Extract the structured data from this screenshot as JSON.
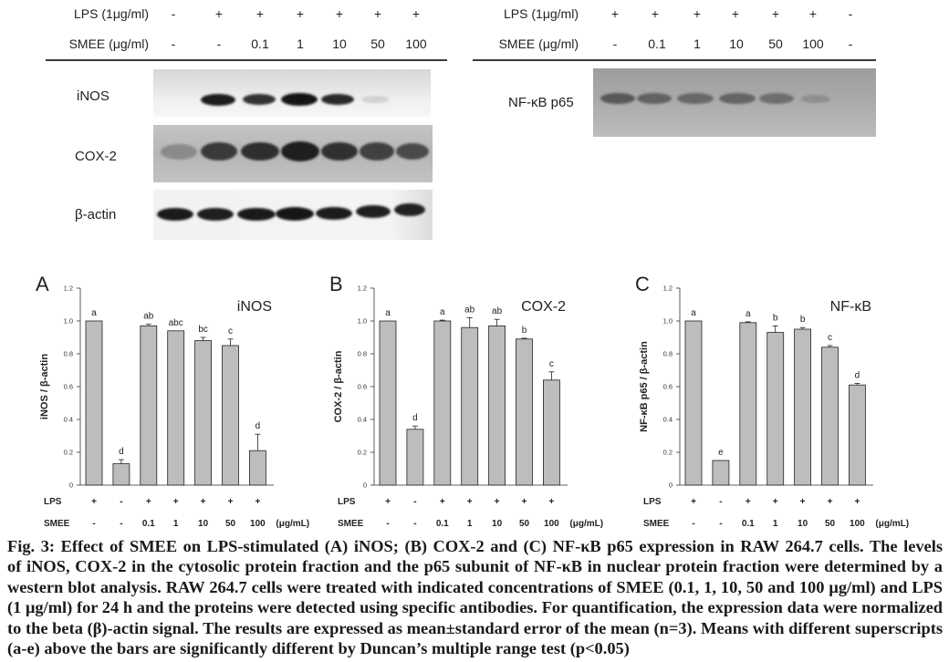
{
  "figure": {
    "blot_left": {
      "lps_label": "LPS (1μg/ml)",
      "lps": [
        "-",
        "+",
        "+",
        "+",
        "+",
        "+",
        "+"
      ],
      "smee_label": "SMEE (μg/ml)",
      "smee": [
        "-",
        "-",
        "0.1",
        "1",
        "10",
        "50",
        "100"
      ],
      "bands": [
        "iNOS",
        "COX-2",
        "β-actin"
      ]
    },
    "blot_right": {
      "lps_label": "LPS (1μg/ml)",
      "lps": [
        "+",
        "+",
        "+",
        "+",
        "+",
        "+",
        "-"
      ],
      "smee_label": "SMEE (μg/ml)",
      "smee": [
        "-",
        "0.1",
        "1",
        "10",
        "50",
        "100",
        "-"
      ],
      "bands": [
        "NF-κB p65"
      ]
    }
  },
  "chart_data": [
    {
      "type": "bar",
      "panel": "A",
      "title": "iNOS",
      "xlabel": "",
      "ylabel": "iNOS / β-actin",
      "ylim": [
        0,
        1.2
      ],
      "yticks": [
        "0",
        "0.2",
        "0.4",
        "0.6",
        "0.8",
        "1.0",
        "1.2"
      ],
      "rows": [
        {
          "label": "LPS",
          "values": [
            "+",
            "-",
            "+",
            "+",
            "+",
            "+",
            "+"
          ]
        },
        {
          "label": "SMEE",
          "values": [
            "-",
            "-",
            "0.1",
            "1",
            "10",
            "50",
            "100"
          ]
        }
      ],
      "unit": "(μg/mL)",
      "values": [
        1.0,
        0.13,
        0.97,
        0.94,
        0.88,
        0.85,
        0.21
      ],
      "errors": [
        0,
        0.025,
        0.01,
        0,
        0.02,
        0.04,
        0.1
      ],
      "letters": [
        "a",
        "d",
        "ab",
        "abc",
        "bc",
        "c",
        "d"
      ],
      "bar_color": "#bdbdbd"
    },
    {
      "type": "bar",
      "panel": "B",
      "title": "COX-2",
      "xlabel": "",
      "ylabel": "COX-2 / β-actin",
      "ylim": [
        0,
        1.2
      ],
      "yticks": [
        "0",
        "0.2",
        "0.4",
        "0.6",
        "0.8",
        "1.0",
        "1.2"
      ],
      "rows": [
        {
          "label": "LPS",
          "values": [
            "+",
            "-",
            "+",
            "+",
            "+",
            "+",
            "+"
          ]
        },
        {
          "label": "SMEE",
          "values": [
            "-",
            "-",
            "0.1",
            "1",
            "10",
            "50",
            "100"
          ]
        }
      ],
      "unit": "(μg/mL)",
      "values": [
        1.0,
        0.34,
        1.0,
        0.96,
        0.97,
        0.89,
        0.64
      ],
      "errors": [
        0,
        0.02,
        0.005,
        0.06,
        0.04,
        0.005,
        0.05
      ],
      "letters": [
        "a",
        "d",
        "a",
        "ab",
        "ab",
        "b",
        "c"
      ],
      "bar_color": "#bdbdbd"
    },
    {
      "type": "bar",
      "panel": "C",
      "title": "NF-κB",
      "xlabel": "",
      "ylabel": "NF-κB p65 / β-actin",
      "ylim": [
        0,
        1.2
      ],
      "yticks": [
        "0",
        "0.2",
        "0.4",
        "0.6",
        "0.8",
        "1.0",
        "1.2"
      ],
      "rows": [
        {
          "label": "LPS",
          "values": [
            "+",
            "-",
            "+",
            "+",
            "+",
            "+",
            "+"
          ]
        },
        {
          "label": "SMEE",
          "values": [
            "-",
            "-",
            "0.1",
            "1",
            "10",
            "50",
            "100"
          ]
        }
      ],
      "unit": "(μg/mL)",
      "values": [
        1.0,
        0.15,
        0.99,
        0.93,
        0.95,
        0.84,
        0.61
      ],
      "errors": [
        0,
        0,
        0.005,
        0.04,
        0.01,
        0.01,
        0.01
      ],
      "letters": [
        "a",
        "e",
        "a",
        "b",
        "b",
        "c",
        "d"
      ],
      "bar_color": "#bdbdbd"
    }
  ],
  "caption": {
    "lines": [
      "Fig. 3: Effect of SMEE on LPS-stimulated (A) iNOS; (B) COX-2 and (C) NF-κB p65 expression in RAW 264.7 cells. The levels",
      "of iNOS, COX-2 in the cytosolic protein fraction and the p65 subunit of NF-κB in nuclear protein fraction were determined by a",
      "western blot analysis. RAW 264.7 cells were treated with indicated concentrations of SMEE (0.1, 1, 10, 50 and 100 μg/ml) and LPS",
      "(1 μg/ml) for 24 h and the proteins were detected using specific antibodies. For quantification, the expression data were normalized",
      "to the beta (β)-actin signal. The results are expressed as mean±standard error of the mean (n=3). Means with different superscripts",
      "(a-e) above the bars are significantly different by Duncan’s multiple range test (p<0.05)"
    ]
  }
}
